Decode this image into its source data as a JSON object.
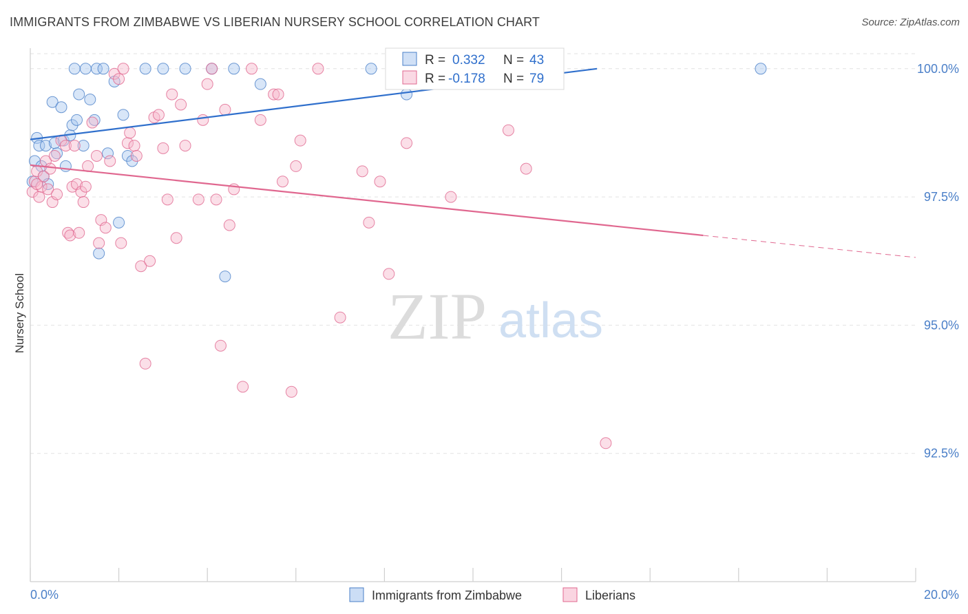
{
  "header": {
    "title": "IMMIGRANTS FROM ZIMBABWE VS LIBERIAN NURSERY SCHOOL CORRELATION CHART",
    "source": "Source: ZipAtlas.com"
  },
  "watermark": {
    "zip": "ZIP",
    "atlas": "atlas"
  },
  "colors": {
    "blue": "#4a7fc8",
    "blue_fill": "#a9c7ef",
    "blue_line": "#2f6fcc",
    "pink": "#e0678f",
    "pink_fill": "#f6b9cd",
    "pink_line": "#e0678f",
    "grid": "#e2e2e2"
  },
  "chart_data": {
    "type": "scatter",
    "title": "IMMIGRANTS FROM ZIMBABWE VS LIBERIAN NURSERY SCHOOL CORRELATION CHART",
    "xlabel": "",
    "ylabel": "Nursery School",
    "xlim": [
      0,
      20
    ],
    "ylim": [
      90.0,
      100.4
    ],
    "x_tick_labels": [
      "0.0%",
      "20.0%"
    ],
    "y_ticks": [
      92.5,
      95.0,
      97.5,
      100.0
    ],
    "y_tick_labels": [
      "92.5%",
      "95.0%",
      "97.5%",
      "100.0%"
    ],
    "grid": true,
    "legend_position": "bottom-center",
    "stats_box": [
      {
        "series": "Immigrants from Zimbabwe",
        "r_label": "R =",
        "r_value": "0.332",
        "n_label": "N =",
        "n_value": "43"
      },
      {
        "series": "Liberians",
        "r_label": "R =",
        "r_value": "-0.178",
        "n_label": "N =",
        "n_value": "79"
      }
    ],
    "series": [
      {
        "name": "Immigrants from Zimbabwe",
        "color": "#4a7fc8",
        "trend": {
          "x0": 0.0,
          "y0": 98.62,
          "x1": 12.8,
          "y1": 100.0,
          "dashed_to": null
        },
        "points": [
          [
            0.05,
            97.8
          ],
          [
            0.1,
            98.2
          ],
          [
            0.15,
            98.65
          ],
          [
            0.2,
            98.5
          ],
          [
            0.25,
            98.1
          ],
          [
            0.3,
            97.9
          ],
          [
            0.35,
            98.5
          ],
          [
            0.4,
            97.75
          ],
          [
            0.5,
            99.35
          ],
          [
            0.55,
            98.55
          ],
          [
            0.6,
            98.35
          ],
          [
            0.7,
            99.25
          ],
          [
            0.75,
            98.6
          ],
          [
            0.8,
            98.1
          ],
          [
            0.9,
            98.7
          ],
          [
            0.95,
            98.9
          ],
          [
            1.0,
            100.0
          ],
          [
            1.05,
            99.0
          ],
          [
            1.1,
            99.5
          ],
          [
            1.2,
            98.5
          ],
          [
            1.25,
            100.0
          ],
          [
            1.35,
            99.4
          ],
          [
            1.45,
            99.0
          ],
          [
            1.5,
            100.0
          ],
          [
            1.55,
            96.4
          ],
          [
            1.65,
            100.0
          ],
          [
            1.75,
            98.35
          ],
          [
            1.9,
            99.75
          ],
          [
            2.0,
            97.0
          ],
          [
            2.1,
            99.1
          ],
          [
            2.2,
            98.3
          ],
          [
            2.3,
            98.2
          ],
          [
            2.6,
            100.0
          ],
          [
            3.0,
            100.0
          ],
          [
            3.5,
            100.0
          ],
          [
            4.1,
            100.0
          ],
          [
            4.4,
            95.95
          ],
          [
            4.6,
            100.0
          ],
          [
            5.2,
            99.7
          ],
          [
            7.7,
            100.0
          ],
          [
            8.5,
            99.5
          ],
          [
            9.6,
            100.0
          ],
          [
            16.5,
            100.0
          ]
        ]
      },
      {
        "name": "Liberians",
        "color": "#e0678f",
        "trend": {
          "x0": 0.0,
          "y0": 98.12,
          "x1": 15.2,
          "y1": 96.75,
          "dashed_to": {
            "x": 20.0,
            "y": 96.32
          }
        },
        "points": [
          [
            0.05,
            97.6
          ],
          [
            0.1,
            97.8
          ],
          [
            0.15,
            98.0
          ],
          [
            0.2,
            97.5
          ],
          [
            0.25,
            97.7
          ],
          [
            0.3,
            97.9
          ],
          [
            0.35,
            98.2
          ],
          [
            0.4,
            97.65
          ],
          [
            0.5,
            97.4
          ],
          [
            0.55,
            98.3
          ],
          [
            0.6,
            97.55
          ],
          [
            0.7,
            98.6
          ],
          [
            0.8,
            98.5
          ],
          [
            0.85,
            96.8
          ],
          [
            0.9,
            96.75
          ],
          [
            0.95,
            97.7
          ],
          [
            1.0,
            98.5
          ],
          [
            1.05,
            97.75
          ],
          [
            1.1,
            96.8
          ],
          [
            1.15,
            97.6
          ],
          [
            1.2,
            97.4
          ],
          [
            1.3,
            98.1
          ],
          [
            1.4,
            98.95
          ],
          [
            1.5,
            98.3
          ],
          [
            1.55,
            96.6
          ],
          [
            1.6,
            97.05
          ],
          [
            1.7,
            96.9
          ],
          [
            1.8,
            98.2
          ],
          [
            1.9,
            99.9
          ],
          [
            2.0,
            99.8
          ],
          [
            2.05,
            96.6
          ],
          [
            2.1,
            100.0
          ],
          [
            2.2,
            98.55
          ],
          [
            2.25,
            98.75
          ],
          [
            2.35,
            98.5
          ],
          [
            2.4,
            98.3
          ],
          [
            2.5,
            96.15
          ],
          [
            2.6,
            94.25
          ],
          [
            2.7,
            96.25
          ],
          [
            2.8,
            99.05
          ],
          [
            2.9,
            99.1
          ],
          [
            3.0,
            98.45
          ],
          [
            3.1,
            97.45
          ],
          [
            3.2,
            99.5
          ],
          [
            3.3,
            96.7
          ],
          [
            3.4,
            99.3
          ],
          [
            3.5,
            98.5
          ],
          [
            3.8,
            97.45
          ],
          [
            3.9,
            99.0
          ],
          [
            4.0,
            99.7
          ],
          [
            4.1,
            100.0
          ],
          [
            4.2,
            97.45
          ],
          [
            4.3,
            94.6
          ],
          [
            4.4,
            99.2
          ],
          [
            4.5,
            96.95
          ],
          [
            4.6,
            97.65
          ],
          [
            4.8,
            93.8
          ],
          [
            5.0,
            100.0
          ],
          [
            5.2,
            99.0
          ],
          [
            5.5,
            99.5
          ],
          [
            5.6,
            99.5
          ],
          [
            5.7,
            97.8
          ],
          [
            5.9,
            93.7
          ],
          [
            6.0,
            98.1
          ],
          [
            6.1,
            98.6
          ],
          [
            6.5,
            100.0
          ],
          [
            7.0,
            95.15
          ],
          [
            7.5,
            98.0
          ],
          [
            7.65,
            97.0
          ],
          [
            7.9,
            97.8
          ],
          [
            8.1,
            96.0
          ],
          [
            8.5,
            98.55
          ],
          [
            9.5,
            97.5
          ],
          [
            10.8,
            98.8
          ],
          [
            11.2,
            98.05
          ],
          [
            13.0,
            92.7
          ],
          [
            0.15,
            97.75
          ],
          [
            0.45,
            98.05
          ],
          [
            1.25,
            97.7
          ]
        ]
      }
    ]
  }
}
